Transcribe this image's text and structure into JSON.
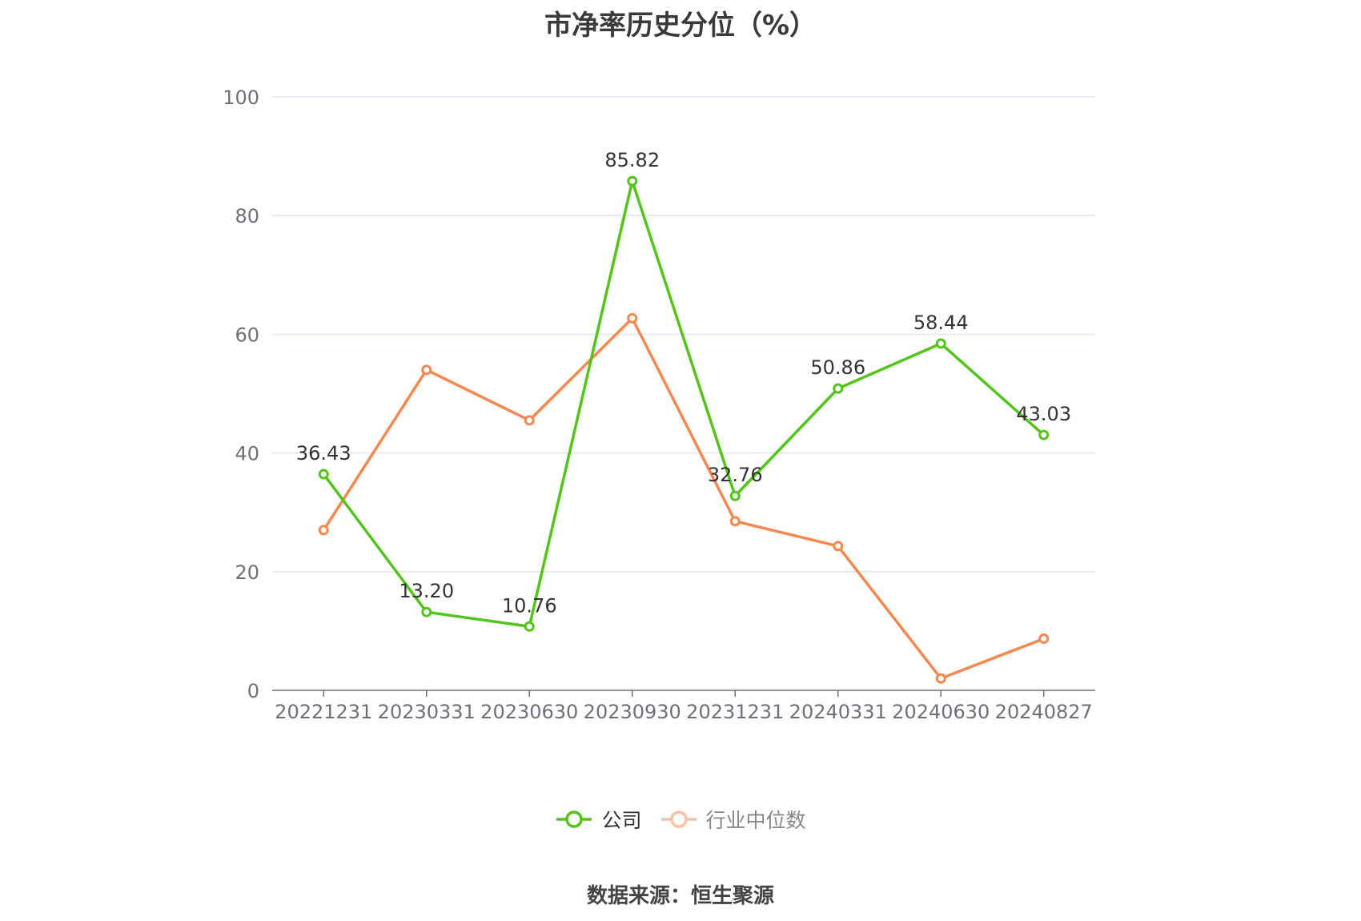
{
  "chart_data": {
    "type": "line",
    "title": "市净率历史分位（%）",
    "categories": [
      "20221231",
      "20230331",
      "20230630",
      "20230930",
      "20231231",
      "20240331",
      "20240630",
      "20240827"
    ],
    "ylim": [
      0,
      100
    ],
    "yticks": [
      0,
      20,
      40,
      60,
      80,
      100
    ],
    "grid": true,
    "legend_position": "bottom",
    "series": [
      {
        "name": "公司",
        "color": "#52c41a",
        "values": [
          36.43,
          13.2,
          10.76,
          85.82,
          32.76,
          50.86,
          58.44,
          43.03
        ],
        "labels": [
          "36.43",
          "13.20",
          "10.76",
          "85.82",
          "32.76",
          "50.86",
          "58.44",
          "43.03"
        ]
      },
      {
        "name": "行业中位数",
        "color": "#f5874f",
        "values": [
          27.0,
          54.0,
          45.5,
          62.7,
          28.5,
          24.3,
          2.0,
          8.7
        ]
      }
    ]
  },
  "source": "数据来源：恒生聚源"
}
